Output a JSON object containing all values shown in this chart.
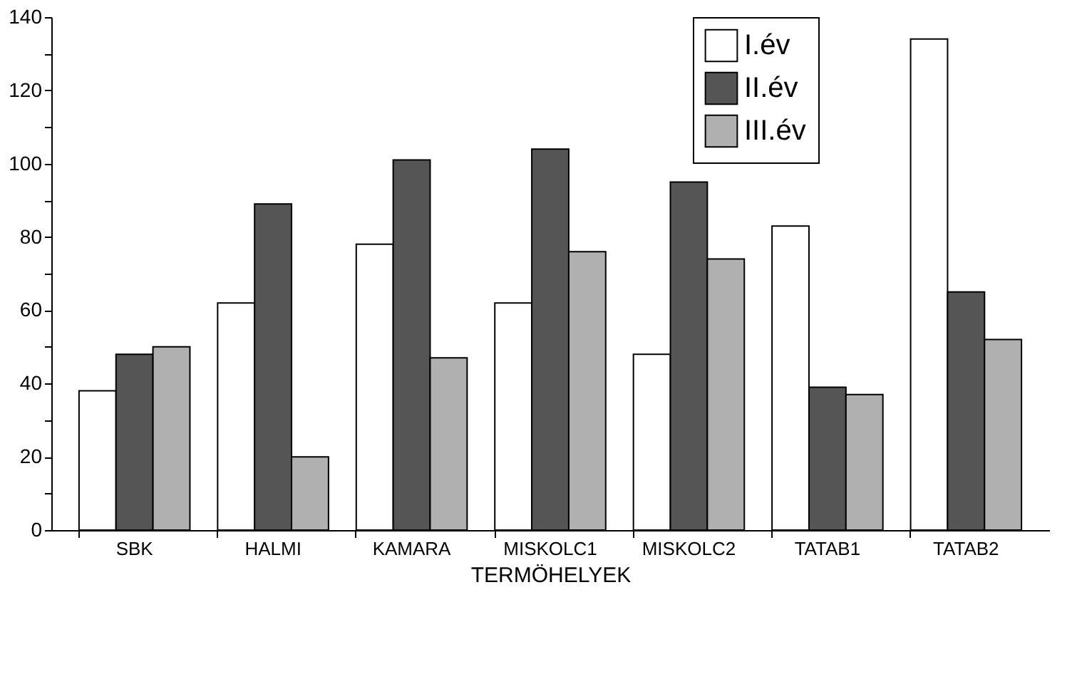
{
  "chart_data": {
    "type": "bar",
    "xlabel": "TERMÖHELYEK",
    "categories": [
      "SBK",
      "HALMI",
      "KAMARA",
      "MISKOLC1",
      "MISKOLC2",
      "TATAB1",
      "TATAB2"
    ],
    "series": [
      {
        "name": "I.év",
        "color": "#ffffff",
        "values": [
          38,
          62,
          78,
          62,
          48,
          83,
          134
        ]
      },
      {
        "name": "II.év",
        "color": "#555555",
        "values": [
          48,
          89,
          101,
          104,
          95,
          39,
          65
        ]
      },
      {
        "name": "III.év",
        "color": "#b0b0b0",
        "values": [
          50,
          20,
          47,
          76,
          74,
          37,
          52
        ]
      }
    ],
    "ylim": [
      0,
      140
    ],
    "yticks": [
      0,
      {
        "value": 10,
        "label": null
      },
      20,
      {
        "value": 30,
        "label": null
      },
      40,
      {
        "value": 50,
        "label": null
      },
      60,
      {
        "value": 70,
        "label": null
      },
      80,
      {
        "value": 90,
        "label": null
      },
      100,
      {
        "value": 110,
        "label": null
      },
      120,
      {
        "value": 130,
        "label": null
      },
      140
    ],
    "grid": false,
    "legend": "top right"
  }
}
